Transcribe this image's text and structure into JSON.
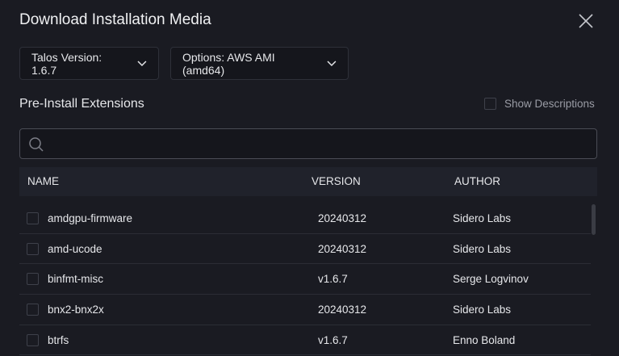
{
  "dialog": {
    "title": "Download Installation Media"
  },
  "dropdowns": {
    "version": "Talos Version: 1.6.7",
    "options": "Options: AWS AMI (amd64)"
  },
  "extensions": {
    "heading": "Pre-Install Extensions",
    "show_descriptions": "Show Descriptions",
    "search_placeholder": "",
    "columns": [
      "NAME",
      "VERSION",
      "AUTHOR"
    ],
    "rows": [
      {
        "name": "amdgpu-firmware",
        "version": "20240312",
        "author": "Sidero Labs"
      },
      {
        "name": "amd-ucode",
        "version": "20240312",
        "author": "Sidero Labs"
      },
      {
        "name": "binfmt-misc",
        "version": "v1.6.7",
        "author": "Serge Logvinov"
      },
      {
        "name": "bnx2-bnx2x",
        "version": "20240312",
        "author": "Sidero Labs"
      },
      {
        "name": "btrfs",
        "version": "v1.6.7",
        "author": "Enno Boland"
      }
    ]
  }
}
